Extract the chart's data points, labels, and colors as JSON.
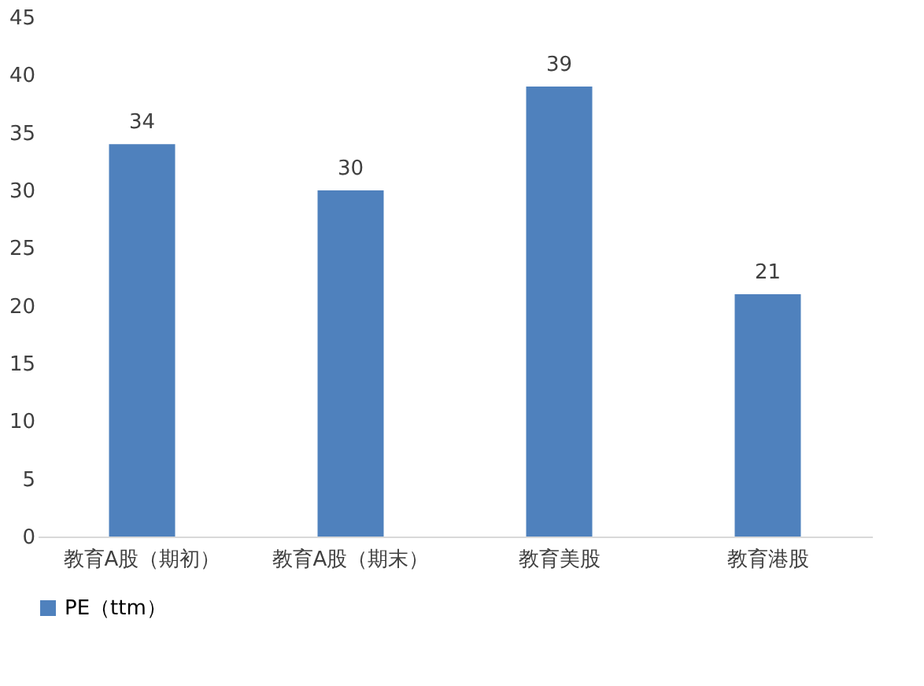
{
  "chart_data": {
    "type": "bar",
    "categories": [
      "教育A股（期初）",
      "教育A股（期末）",
      "教育美股",
      "教育港股"
    ],
    "series": [
      {
        "name": "PE（ttm）",
        "color": "#4f81bd",
        "values": [
          34,
          30,
          39,
          21
        ]
      }
    ],
    "ylim": [
      0,
      45
    ],
    "yticks": [
      0,
      5,
      10,
      15,
      20,
      25,
      30,
      35,
      40,
      45
    ],
    "data_labels": true,
    "legend": "bottom",
    "grid": false
  }
}
